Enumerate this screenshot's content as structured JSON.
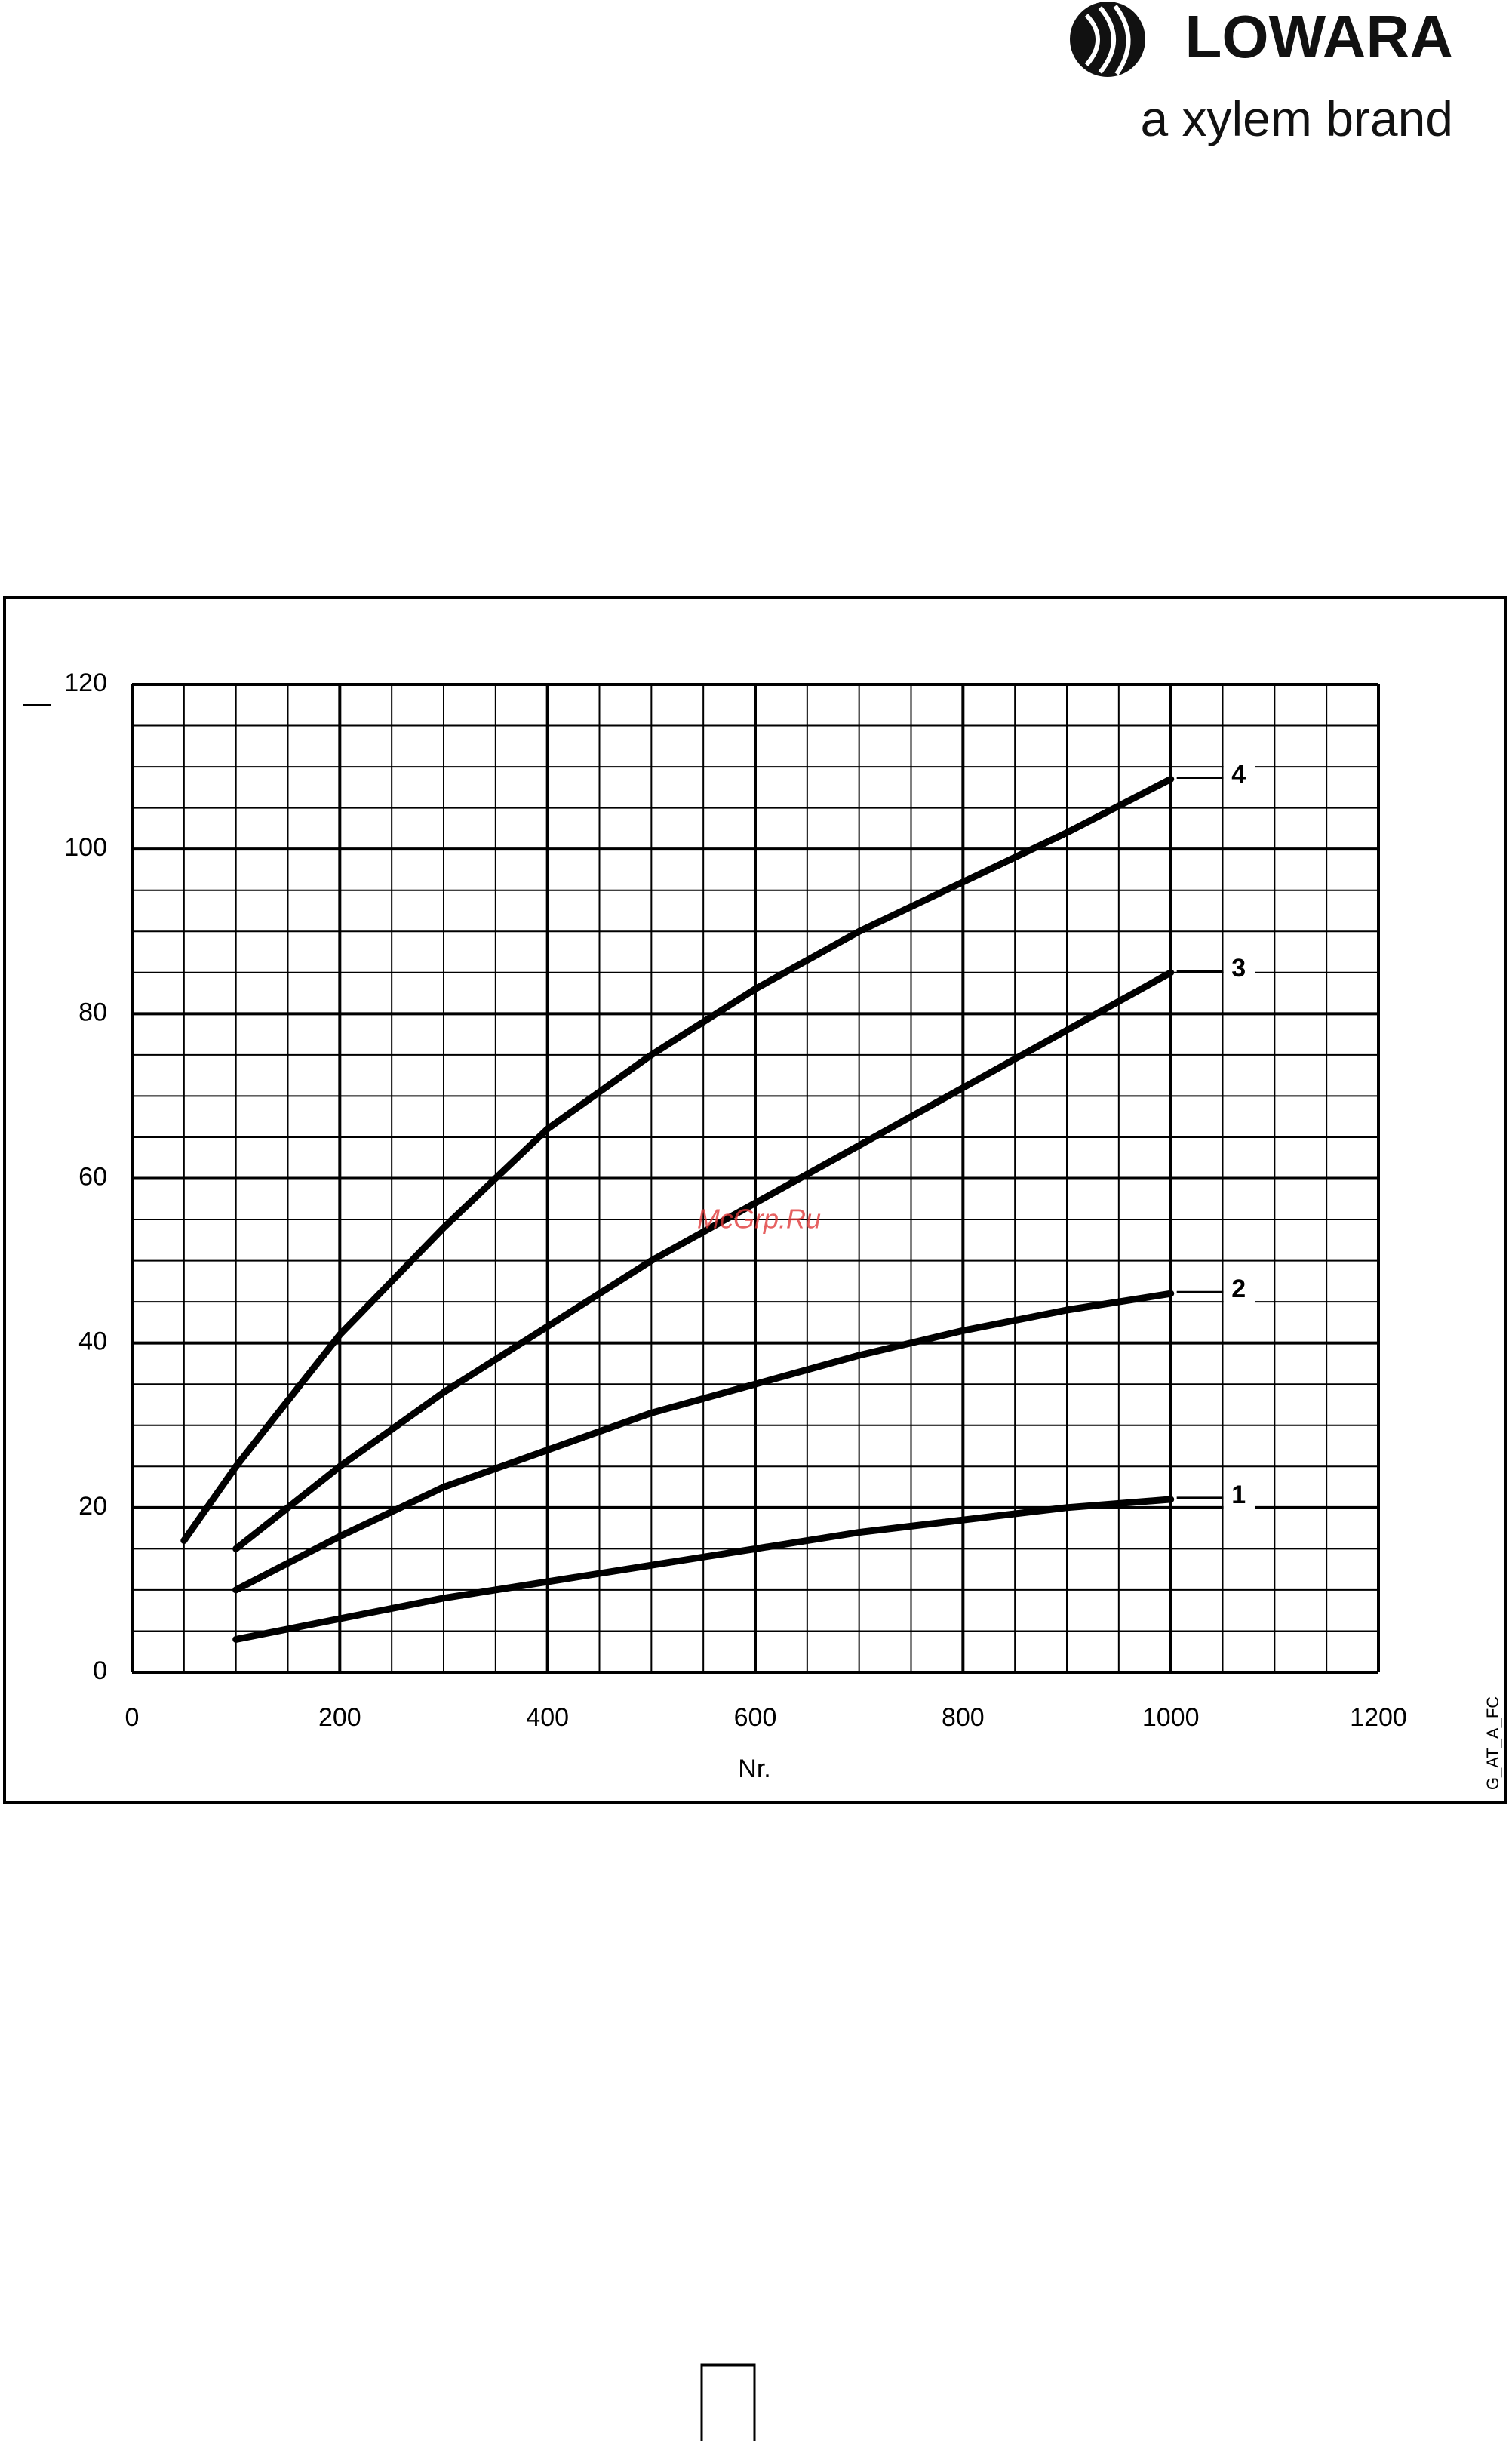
{
  "header": {
    "brand": "LOWARA",
    "tagline": "a xylem brand"
  },
  "chart_data": {
    "type": "line",
    "xlabel": "Nr.",
    "code": "G_AT_A_FC",
    "watermark": "McGrp.Ru",
    "x": [
      50,
      100,
      200,
      300,
      400,
      500,
      600,
      700,
      800,
      900,
      1000
    ],
    "series": [
      {
        "name": "1",
        "color": "#000000",
        "values": [
          null,
          4,
          6.5,
          9,
          11,
          13,
          15,
          17,
          18.5,
          20,
          21
        ]
      },
      {
        "name": "2",
        "color": "#000000",
        "values": [
          null,
          10,
          16.5,
          22.5,
          27,
          31.5,
          35,
          38.5,
          41.5,
          44,
          46
        ]
      },
      {
        "name": "3",
        "color": "#000000",
        "values": [
          null,
          15,
          25,
          34,
          42,
          50,
          57,
          64,
          71,
          78,
          85
        ]
      },
      {
        "name": "4",
        "color": "#000000",
        "values": [
          16,
          25,
          41,
          54,
          66,
          75,
          83,
          90,
          96,
          102,
          108.5
        ]
      }
    ],
    "xlim": [
      0,
      1200
    ],
    "ylim": [
      0,
      120
    ],
    "xticks": [
      0,
      200,
      400,
      600,
      800,
      1000,
      1200
    ],
    "yticks": [
      0,
      20,
      40,
      60,
      80,
      100,
      120
    ],
    "grid": true
  }
}
